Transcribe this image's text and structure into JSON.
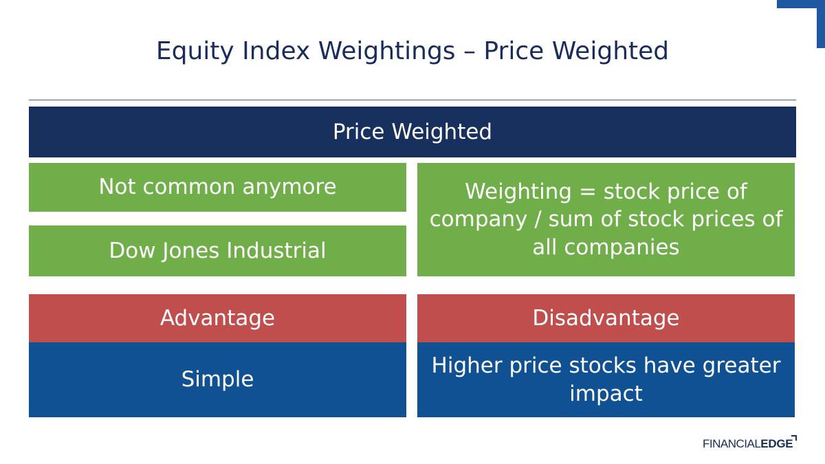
{
  "slide": {
    "title": "Equity Index Weightings – Price Weighted"
  },
  "header": {
    "label": "Price Weighted"
  },
  "features": {
    "item1": "Not common anymore",
    "item2": "Dow Jones Industrial",
    "formula": "Weighting = stock price of company / sum of stock prices of all companies"
  },
  "advantage": {
    "heading": "Advantage",
    "text": "Simple"
  },
  "disadvantage": {
    "heading": "Disadvantage",
    "text": "Higher price stocks have greater impact"
  },
  "logo": {
    "part1": "FINANCIAL",
    "part2": "EDGE"
  },
  "colors": {
    "navy": "#17305e",
    "green": "#6fae48",
    "red": "#bf4e4d",
    "blue": "#0f5192",
    "title_text": "#1a2c5b"
  }
}
